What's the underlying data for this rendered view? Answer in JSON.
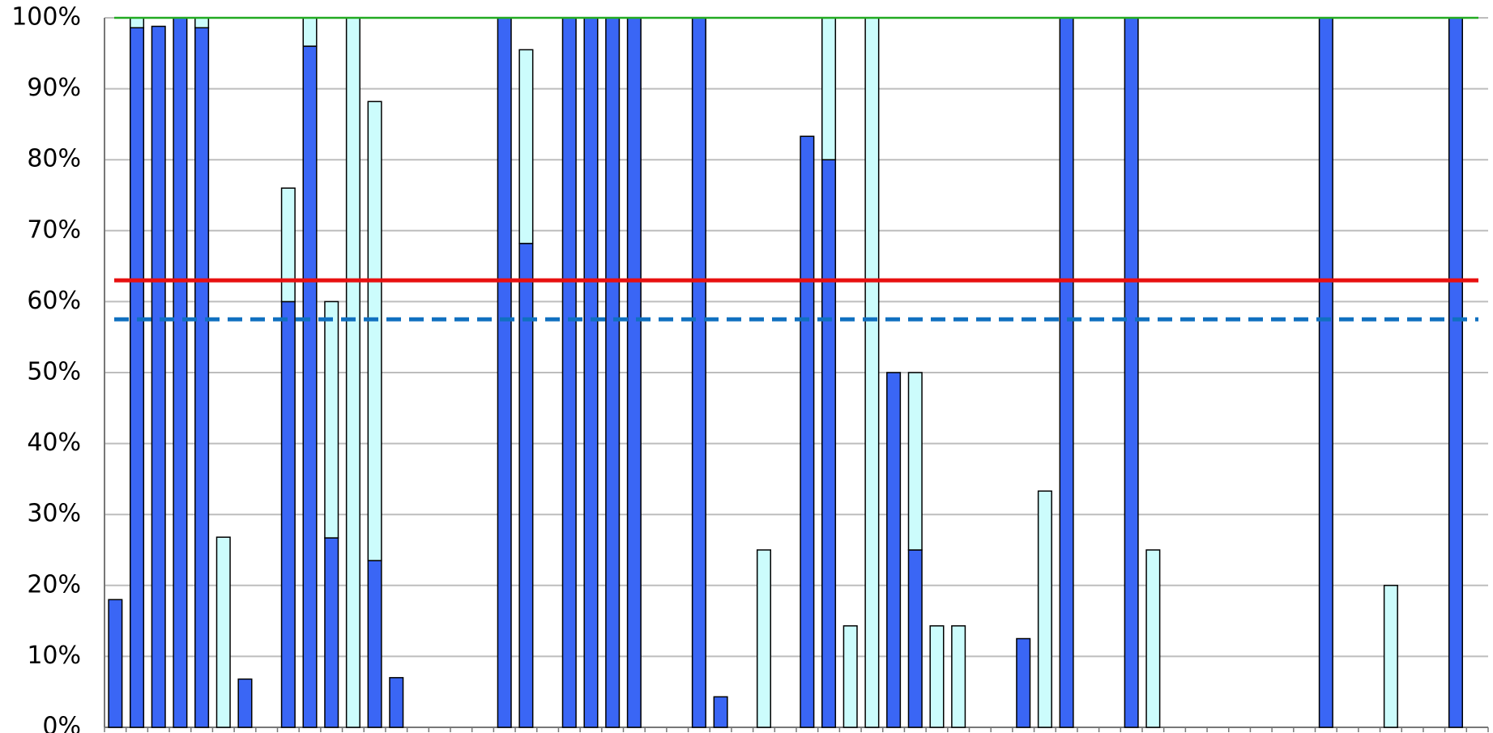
{
  "chart_data": {
    "type": "stacked_bar",
    "categories": [
      null,
      null,
      null,
      null,
      null,
      null,
      null,
      null,
      null,
      null,
      null,
      null,
      null,
      null,
      null,
      null,
      null,
      null,
      null,
      null,
      null,
      null,
      null,
      null,
      null,
      null,
      null,
      null,
      null,
      null,
      null,
      null,
      null,
      null,
      null,
      null,
      null,
      null,
      null,
      null,
      null,
      null,
      null,
      null,
      null,
      null,
      null,
      null,
      null,
      null,
      null,
      null,
      null,
      null,
      null,
      null,
      null,
      null,
      null,
      null,
      null,
      null,
      null,
      null
    ],
    "series": [
      {
        "color": "#3a66f5",
        "values": [
          18,
          98.6,
          98.8,
          100,
          98.6,
          null,
          6.8,
          null,
          60,
          96,
          26.7,
          null,
          23.5,
          7,
          null,
          null,
          null,
          null,
          100,
          68.2,
          null,
          100,
          100,
          100,
          100,
          null,
          null,
          100,
          4.3,
          null,
          null,
          null,
          83.3,
          80,
          null,
          null,
          50,
          25,
          null,
          null,
          null,
          null,
          12.5,
          null,
          100,
          null,
          null,
          100,
          null,
          null,
          null,
          null,
          null,
          null,
          null,
          null,
          100,
          null,
          null,
          null,
          null,
          null,
          100,
          null
        ]
      },
      {
        "color": "#ccfcfc",
        "values": [
          null,
          1.4,
          null,
          null,
          1.4,
          26.8,
          null,
          null,
          16,
          4,
          33.3,
          100,
          64.7,
          null,
          null,
          null,
          null,
          null,
          null,
          27.3,
          null,
          null,
          null,
          null,
          null,
          null,
          null,
          null,
          null,
          null,
          25,
          null,
          null,
          20,
          14.3,
          100,
          null,
          25,
          14.3,
          14.3,
          null,
          null,
          null,
          33.3,
          null,
          null,
          null,
          null,
          25,
          null,
          null,
          null,
          null,
          null,
          null,
          null,
          null,
          null,
          null,
          20,
          null,
          null,
          null,
          null
        ]
      }
    ],
    "reference_lines": [
      {
        "value": 100,
        "color": "#22aa22",
        "style": "solid"
      },
      {
        "value": 63,
        "color": "#e81010",
        "style": "solid"
      },
      {
        "value": 57.5,
        "color": "#1070c0",
        "style": "dashed"
      }
    ],
    "ylim": [
      0,
      100
    ],
    "yticks": [
      {
        "value": 0,
        "label": "0%"
      },
      {
        "value": 10,
        "label": "10%"
      },
      {
        "value": 20,
        "label": "20%"
      },
      {
        "value": 30,
        "label": "30%"
      },
      {
        "value": 40,
        "label": "40%"
      },
      {
        "value": 50,
        "label": "50%"
      },
      {
        "value": 60,
        "label": "60%"
      },
      {
        "value": 70,
        "label": "70%"
      },
      {
        "value": 80,
        "label": "80%"
      },
      {
        "value": 90,
        "label": "90%"
      },
      {
        "value": 100,
        "label": "100%"
      }
    ],
    "grid": true
  }
}
